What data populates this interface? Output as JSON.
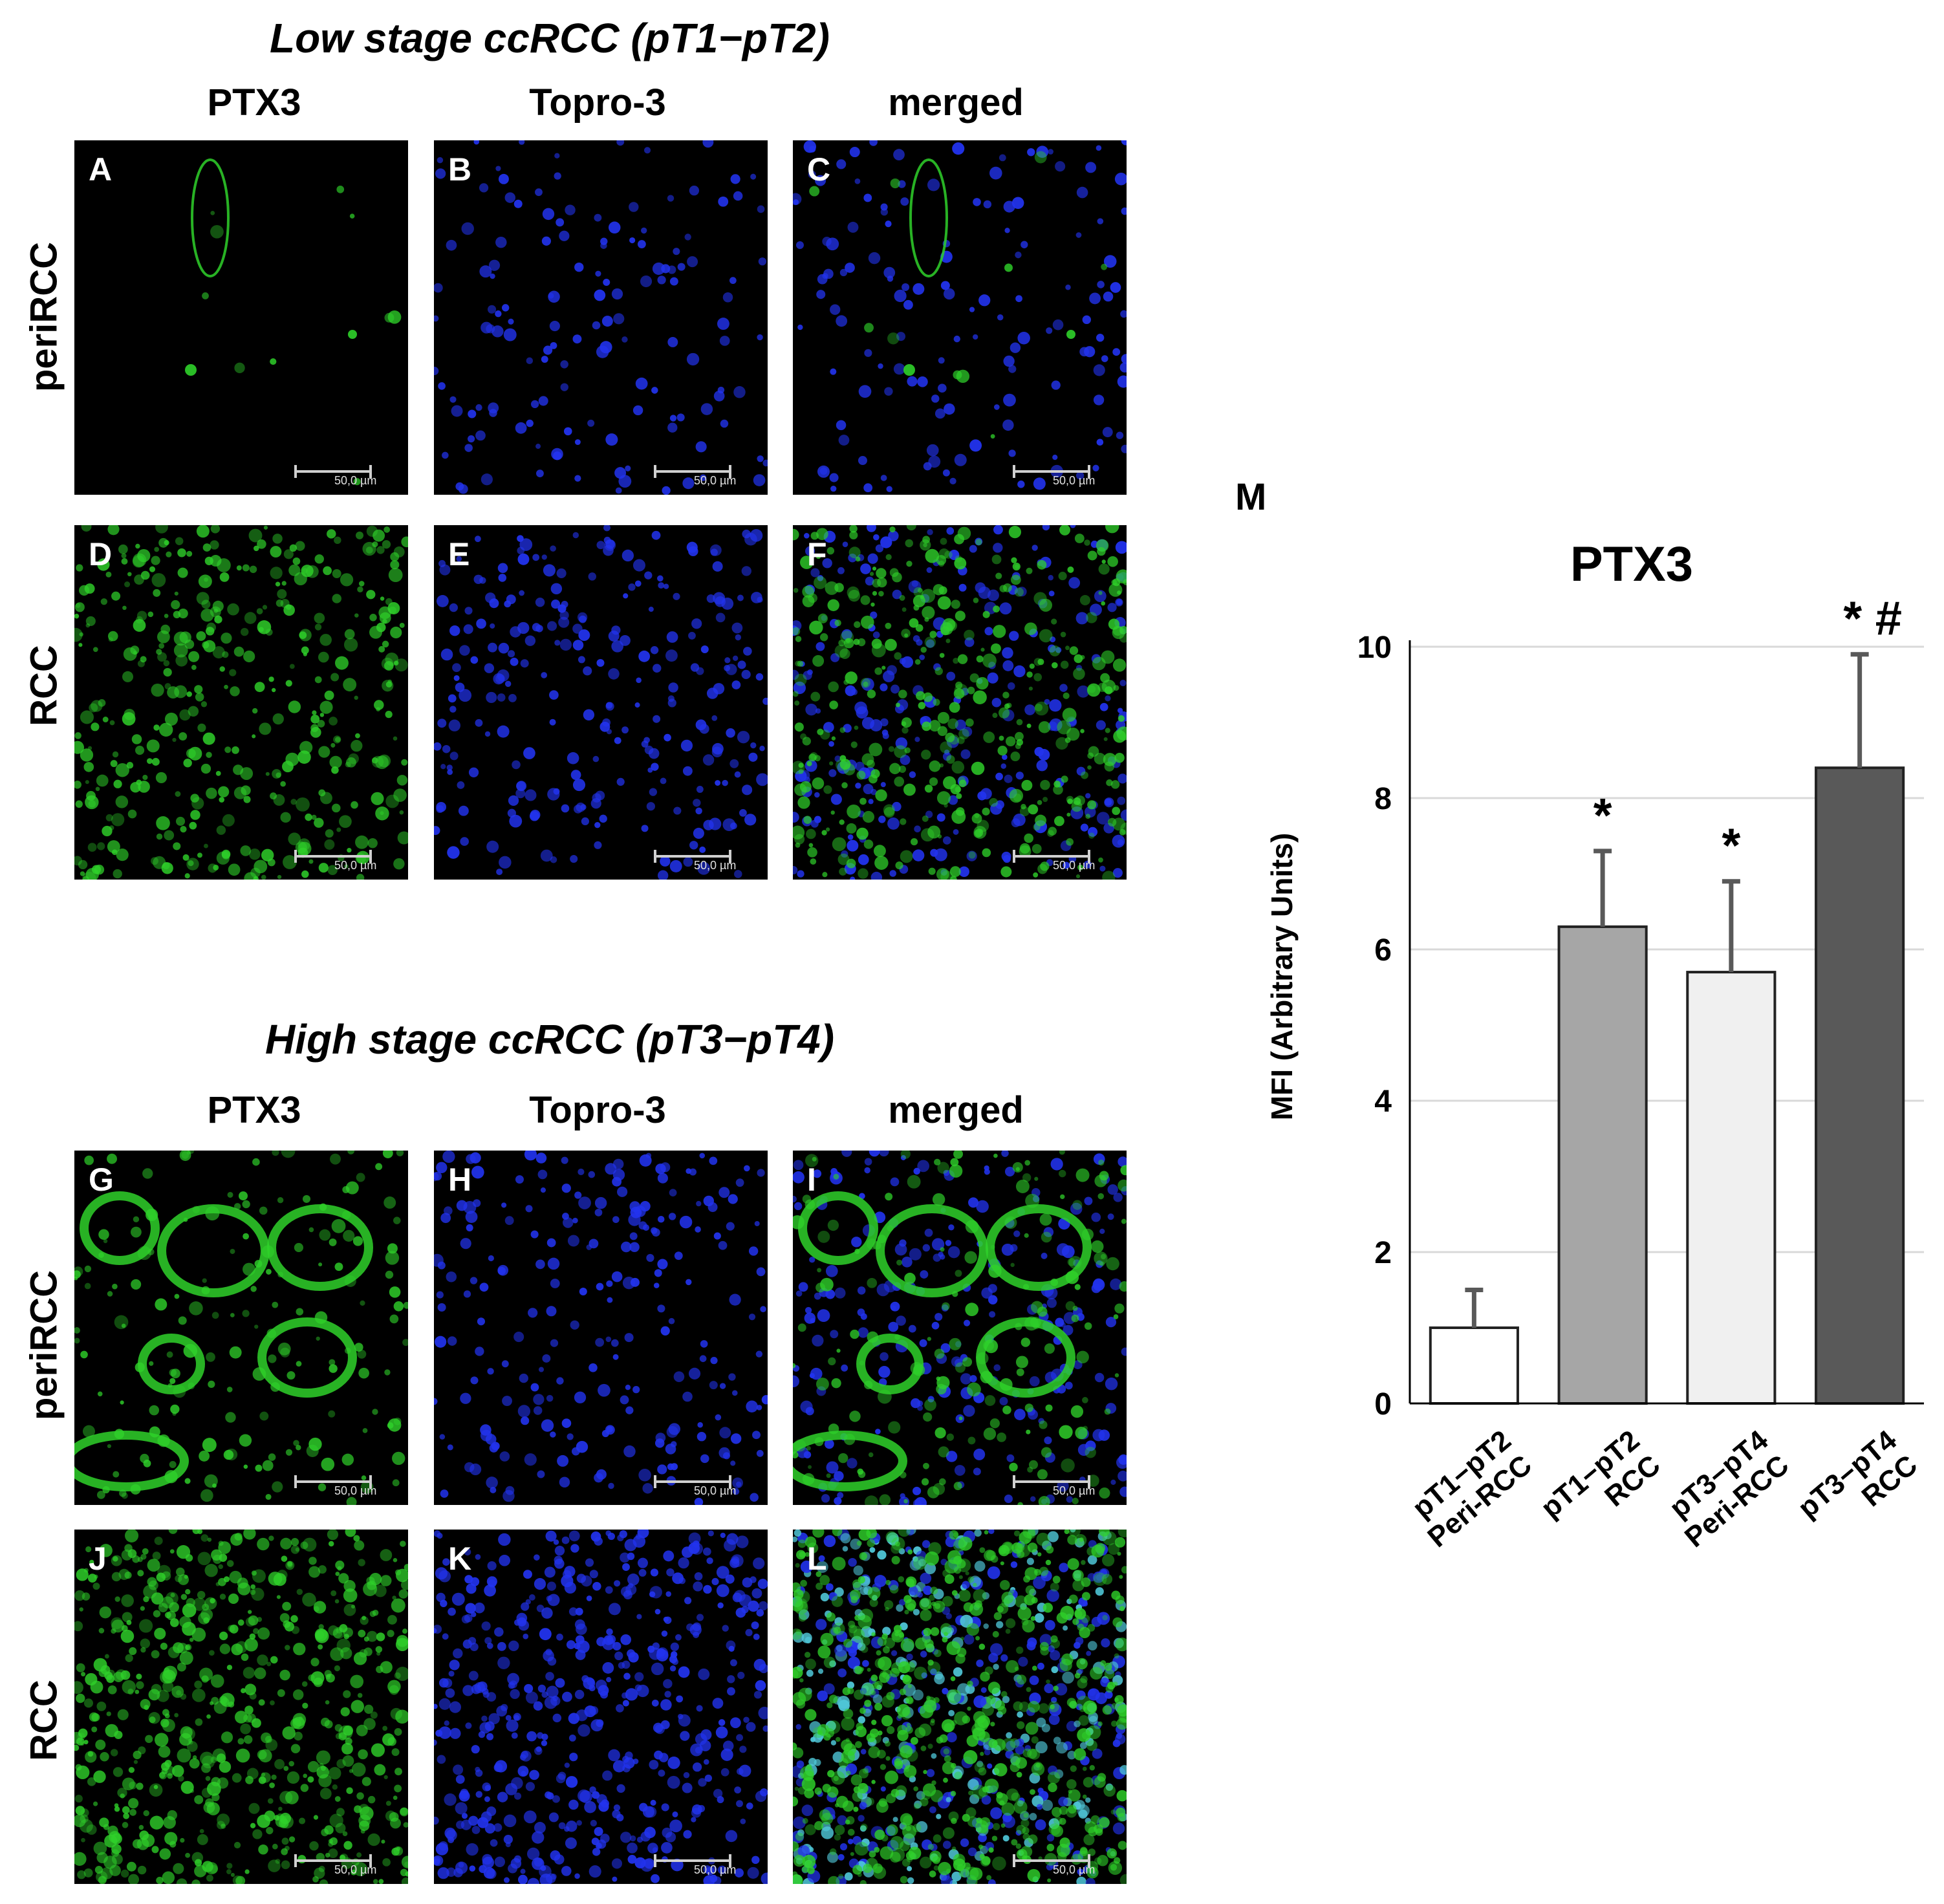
{
  "sections": [
    {
      "title": "Low stage ccRCC (pT1−pT2)",
      "columns": [
        "PTX3",
        "Topro-3",
        "merged"
      ],
      "rows": [
        {
          "label": "periRCC",
          "panels": [
            "A",
            "B",
            "C"
          ]
        },
        {
          "label": "RCC",
          "panels": [
            "D",
            "E",
            "F"
          ]
        }
      ]
    },
    {
      "title": "High stage ccRCC (pT3−pT4)",
      "columns": [
        "PTX3",
        "Topro-3",
        "merged"
      ],
      "rows": [
        {
          "label": "periRCC",
          "panels": [
            "G",
            "H",
            "I"
          ]
        },
        {
          "label": "RCC",
          "panels": [
            "J",
            "K",
            "L"
          ]
        }
      ]
    }
  ],
  "scale_bar_text": "50,0 µm",
  "colors": {
    "ptx3": "#2fd12a",
    "topro3": "#2233ee",
    "merged_overlap": "#4fc7d8"
  },
  "chart_panel_label": "M",
  "chart_data": {
    "type": "bar",
    "title": "PTX3",
    "ylabel": "MFI (Arbitrary Units)",
    "xlabel": "",
    "ylim": [
      0,
      10
    ],
    "yticks": [
      0,
      2,
      4,
      6,
      8,
      10
    ],
    "grid": true,
    "categories": [
      "pT1−pT2 Peri-RCC",
      "pT1−pT2 RCC",
      "pT3−pT4 Peri-RCC",
      "pT3−pT4 RCC"
    ],
    "category_lines": [
      [
        "pT1−pT2",
        "Peri-RCC"
      ],
      [
        "pT1−pT2",
        "RCC"
      ],
      [
        "pT3−pT4",
        "Peri-RCC"
      ],
      [
        "pT3−pT4",
        "RCC"
      ]
    ],
    "values": [
      1.0,
      6.3,
      5.7,
      8.4
    ],
    "errors": [
      0.5,
      1.0,
      1.2,
      1.5
    ],
    "bar_colors": [
      "#ffffff",
      "#a6a6a6",
      "#f0f0f0",
      "#595959"
    ],
    "annotations": [
      "",
      "*",
      "*",
      "* #"
    ]
  }
}
